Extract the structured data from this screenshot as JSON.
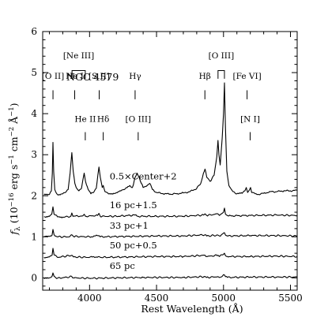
{
  "chart_data": {
    "type": "line",
    "title": "NGC 4579",
    "xlabel": "Rest Wavelength (Å)",
    "ylabel": "f_λ (10^−16 erg s^−1 cm^−2 Å^−1)",
    "ylabel_parts": {
      "f": "f",
      "sub": "λ",
      "open": " (10",
      "exp1": "−16",
      "erg": " erg s",
      "exp2": "−1",
      "cm": " cm",
      "exp3": "−2",
      "aa": " Å",
      "exp4": "−1",
      "close": ")"
    },
    "xlim": [
      3650,
      5550
    ],
    "ylim": [
      -0.3,
      6
    ],
    "x_ticks": [
      4000,
      4500,
      5000,
      5500
    ],
    "y_ticks": [
      0,
      1,
      2,
      3,
      4,
      5,
      6
    ],
    "grid": false,
    "series": [
      {
        "label": "0.5×Center+2",
        "points": [
          [
            3660,
            2.02
          ],
          [
            3700,
            2.03
          ],
          [
            3715,
            2.12
          ],
          [
            3722,
            2.55
          ],
          [
            3727,
            3.3
          ],
          [
            3732,
            2.6
          ],
          [
            3740,
            2.15
          ],
          [
            3760,
            2.03
          ],
          [
            3780,
            2.02
          ],
          [
            3800,
            2.05
          ],
          [
            3820,
            2.08
          ],
          [
            3840,
            2.15
          ],
          [
            3855,
            2.55
          ],
          [
            3868,
            3.05
          ],
          [
            3878,
            2.6
          ],
          [
            3890,
            2.3
          ],
          [
            3900,
            2.2
          ],
          [
            3920,
            2.12
          ],
          [
            3940,
            2.18
          ],
          [
            3950,
            2.38
          ],
          [
            3960,
            2.55
          ],
          [
            3970,
            2.35
          ],
          [
            3990,
            2.15
          ],
          [
            4010,
            2.05
          ],
          [
            4030,
            2.08
          ],
          [
            4050,
            2.18
          ],
          [
            4062,
            2.5
          ],
          [
            4070,
            2.7
          ],
          [
            4080,
            2.45
          ],
          [
            4095,
            2.2
          ],
          [
            4102,
            2.25
          ],
          [
            4115,
            2.1
          ],
          [
            4140,
            2.05
          ],
          [
            4180,
            2.06
          ],
          [
            4220,
            2.1
          ],
          [
            4260,
            2.15
          ],
          [
            4300,
            2.25
          ],
          [
            4320,
            2.2
          ],
          [
            4340,
            2.45
          ],
          [
            4355,
            2.55
          ],
          [
            4370,
            2.45
          ],
          [
            4380,
            2.35
          ],
          [
            4400,
            2.2
          ],
          [
            4430,
            2.25
          ],
          [
            4450,
            2.3
          ],
          [
            4470,
            2.15
          ],
          [
            4500,
            2.08
          ],
          [
            4550,
            2.05
          ],
          [
            4600,
            2.04
          ],
          [
            4650,
            2.05
          ],
          [
            4700,
            2.07
          ],
          [
            4750,
            2.1
          ],
          [
            4800,
            2.18
          ],
          [
            4830,
            2.3
          ],
          [
            4850,
            2.55
          ],
          [
            4862,
            2.65
          ],
          [
            4875,
            2.45
          ],
          [
            4900,
            2.35
          ],
          [
            4930,
            2.5
          ],
          [
            4950,
            2.95
          ],
          [
            4959,
            3.35
          ],
          [
            4966,
            3.0
          ],
          [
            4975,
            2.75
          ],
          [
            4990,
            3.4
          ],
          [
            5000,
            4.0
          ],
          [
            5007,
            4.75
          ],
          [
            5014,
            3.7
          ],
          [
            5025,
            2.6
          ],
          [
            5040,
            2.25
          ],
          [
            5070,
            2.1
          ],
          [
            5100,
            2.05
          ],
          [
            5140,
            2.06
          ],
          [
            5160,
            2.12
          ],
          [
            5170,
            2.2
          ],
          [
            5180,
            2.08
          ],
          [
            5195,
            2.15
          ],
          [
            5202,
            2.2
          ],
          [
            5210,
            2.08
          ],
          [
            5250,
            2.03
          ],
          [
            5300,
            2.06
          ],
          [
            5350,
            2.1
          ],
          [
            5400,
            2.1
          ],
          [
            5450,
            2.12
          ],
          [
            5500,
            2.12
          ],
          [
            5550,
            2.13
          ]
        ]
      },
      {
        "label": "16 pc+1.5",
        "points": [
          [
            3660,
            1.49
          ],
          [
            3700,
            1.5
          ],
          [
            3718,
            1.55
          ],
          [
            3727,
            1.73
          ],
          [
            3735,
            1.55
          ],
          [
            3760,
            1.49
          ],
          [
            3800,
            1.48
          ],
          [
            3860,
            1.5
          ],
          [
            3868,
            1.58
          ],
          [
            3876,
            1.5
          ],
          [
            3950,
            1.51
          ],
          [
            3960,
            1.55
          ],
          [
            3970,
            1.5
          ],
          [
            4060,
            1.52
          ],
          [
            4070,
            1.57
          ],
          [
            4080,
            1.5
          ],
          [
            4200,
            1.5
          ],
          [
            4340,
            1.53
          ],
          [
            4360,
            1.5
          ],
          [
            4500,
            1.5
          ],
          [
            4700,
            1.5
          ],
          [
            4850,
            1.53
          ],
          [
            4862,
            1.56
          ],
          [
            4875,
            1.52
          ],
          [
            4959,
            1.56
          ],
          [
            4970,
            1.52
          ],
          [
            5000,
            1.6
          ],
          [
            5007,
            1.7
          ],
          [
            5015,
            1.55
          ],
          [
            5040,
            1.51
          ],
          [
            5200,
            1.52
          ],
          [
            5400,
            1.53
          ],
          [
            5550,
            1.52
          ]
        ]
      },
      {
        "label": "33 pc+1",
        "points": [
          [
            3660,
            1.0
          ],
          [
            3700,
            1.01
          ],
          [
            3720,
            1.04
          ],
          [
            3727,
            1.18
          ],
          [
            3735,
            1.05
          ],
          [
            3760,
            1.0
          ],
          [
            3850,
            1.0
          ],
          [
            3868,
            1.05
          ],
          [
            3880,
            1.01
          ],
          [
            4000,
            1.0
          ],
          [
            4070,
            1.03
          ],
          [
            4080,
            1.0
          ],
          [
            4300,
            1.01
          ],
          [
            4500,
            1.02
          ],
          [
            4700,
            1.02
          ],
          [
            4862,
            1.05
          ],
          [
            4875,
            1.02
          ],
          [
            4959,
            1.04
          ],
          [
            4970,
            1.02
          ],
          [
            5007,
            1.1
          ],
          [
            5015,
            1.04
          ],
          [
            5030,
            1.02
          ],
          [
            5200,
            1.03
          ],
          [
            5400,
            1.03
          ],
          [
            5550,
            1.02
          ]
        ]
      },
      {
        "label": "50 pc+0.5",
        "points": [
          [
            3660,
            0.5
          ],
          [
            3700,
            0.51
          ],
          [
            3720,
            0.55
          ],
          [
            3727,
            0.72
          ],
          [
            3735,
            0.56
          ],
          [
            3760,
            0.5
          ],
          [
            3868,
            0.55
          ],
          [
            3880,
            0.51
          ],
          [
            4000,
            0.5
          ],
          [
            4070,
            0.52
          ],
          [
            4080,
            0.5
          ],
          [
            4300,
            0.51
          ],
          [
            4500,
            0.52
          ],
          [
            4700,
            0.52
          ],
          [
            4862,
            0.55
          ],
          [
            4875,
            0.52
          ],
          [
            4959,
            0.55
          ],
          [
            4970,
            0.52
          ],
          [
            5007,
            0.6
          ],
          [
            5015,
            0.54
          ],
          [
            5030,
            0.52
          ],
          [
            5200,
            0.52
          ],
          [
            5400,
            0.53
          ],
          [
            5550,
            0.52
          ]
        ]
      },
      {
        "label": "65 pc",
        "points": [
          [
            3660,
            -0.02
          ],
          [
            3700,
            0.0
          ],
          [
            3720,
            0.04
          ],
          [
            3727,
            0.12
          ],
          [
            3735,
            0.04
          ],
          [
            3760,
            -0.01
          ],
          [
            3868,
            0.03
          ],
          [
            3880,
            0.0
          ],
          [
            4000,
            -0.01
          ],
          [
            4200,
            0.0
          ],
          [
            4400,
            0.01
          ],
          [
            4700,
            0.01
          ],
          [
            4862,
            0.03
          ],
          [
            4875,
            0.01
          ],
          [
            4959,
            0.03
          ],
          [
            4970,
            0.01
          ],
          [
            5007,
            0.07
          ],
          [
            5015,
            0.03
          ],
          [
            5030,
            0.01
          ],
          [
            5200,
            0.02
          ],
          [
            5400,
            0.02
          ],
          [
            5550,
            0.02
          ]
        ]
      }
    ],
    "series_label_pos": [
      {
        "x": 4150,
        "y": 2.4
      },
      {
        "x": 4150,
        "y": 1.7
      },
      {
        "x": 4150,
        "y": 1.2
      },
      {
        "x": 4150,
        "y": 0.72
      },
      {
        "x": 4150,
        "y": 0.22
      }
    ],
    "line_ids": [
      {
        "label": "[O II]",
        "x": 3727,
        "label_y": 4.85,
        "tick_top": 4.57,
        "tick_bot": 4.35,
        "row": "upper"
      },
      {
        "label": "He I",
        "x": 3889,
        "label_y": 4.85,
        "tick_top": 4.57,
        "tick_bot": 4.35,
        "row": "upper"
      },
      {
        "label": "[S II]",
        "x": 4072,
        "label_y": 4.85,
        "tick_top": 4.57,
        "tick_bot": 4.35,
        "row": "upper"
      },
      {
        "label": "Hγ",
        "x": 4340,
        "label_y": 4.85,
        "tick_top": 4.57,
        "tick_bot": 4.35,
        "row": "upper"
      },
      {
        "label": "Hβ",
        "x": 4861,
        "label_y": 4.85,
        "tick_top": 4.57,
        "tick_bot": 4.35,
        "row": "upper"
      },
      {
        "label": "[Fe VI]",
        "x": 5176,
        "label_y": 4.85,
        "tick_top": 4.57,
        "tick_bot": 4.35,
        "row": "upper"
      },
      {
        "label": "He II",
        "x": 3968,
        "label_y": 3.8,
        "tick_top": 3.55,
        "tick_bot": 3.35,
        "row": "lower"
      },
      {
        "label": "Hδ",
        "x": 4102,
        "label_y": 3.8,
        "tick_top": 3.55,
        "tick_bot": 3.35,
        "row": "lower"
      },
      {
        "label": "[O III]",
        "x": 4363,
        "label_y": 3.8,
        "tick_top": 3.55,
        "tick_bot": 3.35,
        "row": "lower"
      },
      {
        "label": "[N I]",
        "x": 5199,
        "label_y": 3.8,
        "tick_top": 3.55,
        "tick_bot": 3.35,
        "row": "lower"
      }
    ],
    "bracket_ids": [
      {
        "label": "[Ne III]",
        "x1": 3869,
        "x2": 3968,
        "label_y": 5.35,
        "bar_y": 5.05,
        "tick_bot": 4.85
      },
      {
        "label": "[O III]",
        "x1": 4959,
        "x2": 5007,
        "label_y": 5.35,
        "bar_y": 5.05,
        "tick_bot": 4.85
      }
    ]
  }
}
